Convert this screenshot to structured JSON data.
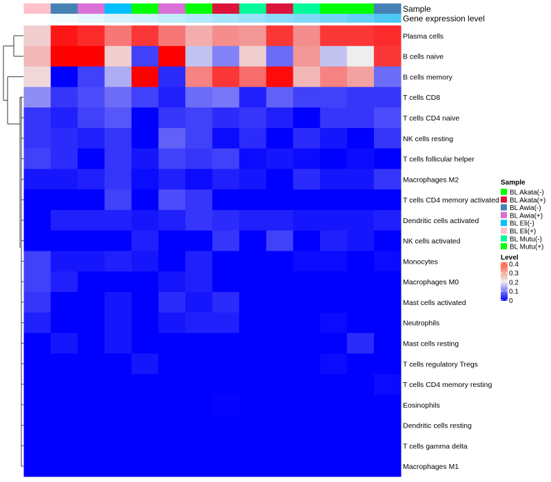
{
  "chart_data": {
    "type": "heatmap",
    "title": "",
    "annotation_rows": [
      "Sample",
      "Gene expression level"
    ],
    "rows": [
      "Plasma cells",
      "B cells naive",
      "B cells memory",
      "T cells CD8",
      "T cells CD4 naive",
      "NK cells resting",
      "T cells follicular helper",
      "Macrophages M2",
      "T cells CD4 memory activated",
      "Dendritic cells activated",
      "NK cells activated",
      "Monocytes",
      "Macrophages M0",
      "Mast cells activated",
      "Neutrophils",
      "Mast cells resting",
      "T cells regulatory  Tregs",
      "T cells CD4 memory resting",
      "Eosinophils",
      "Dendritic cells resting",
      "T cells gamma delta",
      "Macrophages M1"
    ],
    "column_samples": [
      "BL Eli(+)",
      "BL Awia(-)",
      "BL Awia(+)",
      "BL Eli(-)",
      "BL Akata(-)",
      "BL Awia(+)",
      "BL Mutu(+)",
      "BL Akata(+)",
      "BL Mutu(-)",
      "BL Akata(+)",
      "BL Mutu(-)",
      "BL Akata(-)",
      "BL Mutu(+)",
      "BL Awia(-)"
    ],
    "column_gene_expression_level": [
      0,
      0.07,
      0.14,
      0.21,
      0.28,
      0.35,
      0.42,
      0.5,
      0.57,
      0.64,
      0.71,
      0.78,
      0.86,
      1
    ],
    "values": [
      [
        0.25,
        0.42,
        0.4,
        0.33,
        0.39,
        0.33,
        0.28,
        0.31,
        0.3,
        0.39,
        0.31,
        0.39,
        0.39,
        0.4
      ],
      [
        0.27,
        0.44,
        0.44,
        0.25,
        0.06,
        0.44,
        0.18,
        0.12,
        0.25,
        0.1,
        0.3,
        0.18,
        0.22,
        0.39
      ],
      [
        0.24,
        0.0,
        0.06,
        0.16,
        0.44,
        0.04,
        0.32,
        0.39,
        0.34,
        0.43,
        0.27,
        0.32,
        0.29,
        0.1
      ],
      [
        0.13,
        0.05,
        0.07,
        0.1,
        0.06,
        0.03,
        0.1,
        0.11,
        0.03,
        0.09,
        0.06,
        0.06,
        0.05,
        0.05
      ],
      [
        0.05,
        0.03,
        0.06,
        0.08,
        0.0,
        0.05,
        0.06,
        0.04,
        0.05,
        0.03,
        0.0,
        0.05,
        0.05,
        0.07
      ],
      [
        0.05,
        0.04,
        0.03,
        0.05,
        0.0,
        0.09,
        0.06,
        0.01,
        0.04,
        0.0,
        0.04,
        0.02,
        0.0,
        0.05
      ],
      [
        0.06,
        0.04,
        0.0,
        0.05,
        0.02,
        0.06,
        0.05,
        0.06,
        0.01,
        0.02,
        0.01,
        0.0,
        0.01,
        0.0
      ],
      [
        0.02,
        0.02,
        0.03,
        0.05,
        0.01,
        0.03,
        0.01,
        0.03,
        0.02,
        0.0,
        0.04,
        0.02,
        0.02,
        0.05
      ],
      [
        0.0,
        0.0,
        0.0,
        0.06,
        0.0,
        0.07,
        0.05,
        0.0,
        0.0,
        0.0,
        0.0,
        0.0,
        0.0,
        0.0
      ],
      [
        0.0,
        0.03,
        0.03,
        0.03,
        0.02,
        0.03,
        0.05,
        0.04,
        0.03,
        0.03,
        0.02,
        0.02,
        0.02,
        0.03
      ],
      [
        0.0,
        0.0,
        0.0,
        0.0,
        0.03,
        0.0,
        0.0,
        0.05,
        0.0,
        0.06,
        0.0,
        0.03,
        0.02,
        0.0
      ],
      [
        0.06,
        0.02,
        0.02,
        0.03,
        0.02,
        0.0,
        0.03,
        0.0,
        0.0,
        0.0,
        0.01,
        0.01,
        0.0,
        0.01
      ],
      [
        0.06,
        0.03,
        0.0,
        0.0,
        0.0,
        0.02,
        0.03,
        0.0,
        0.0,
        0.0,
        0.0,
        0.0,
        0.0,
        0.0
      ],
      [
        0.05,
        0.0,
        0.0,
        0.02,
        0.0,
        0.04,
        0.02,
        0.04,
        0.0,
        0.0,
        0.0,
        0.0,
        0.0,
        0.0
      ],
      [
        0.03,
        0.0,
        0.0,
        0.02,
        0.0,
        0.02,
        0.03,
        0.03,
        0.0,
        0.0,
        0.0,
        0.01,
        0.0,
        0.0
      ],
      [
        0.0,
        0.02,
        0.0,
        0.02,
        0.0,
        0.0,
        0.0,
        0.0,
        0.0,
        0.0,
        0.0,
        0.0,
        0.04,
        0.0
      ],
      [
        0.0,
        0.0,
        0.0,
        0.0,
        0.02,
        0.0,
        0.0,
        0.0,
        0.0,
        0.0,
        0.0,
        0.01,
        0.0,
        0.0
      ],
      [
        0.0,
        0.0,
        0.0,
        0.0,
        0.0,
        0.0,
        0.0,
        0.0,
        0.0,
        0.0,
        0.0,
        0.0,
        0.0,
        0.01
      ],
      [
        0,
        0,
        0,
        0,
        0,
        0,
        0,
        0.005,
        0,
        0,
        0,
        0,
        0,
        0
      ],
      [
        0,
        0,
        0,
        0,
        0,
        0,
        0,
        0,
        0,
        0,
        0,
        0,
        0,
        0
      ],
      [
        0,
        0,
        0,
        0,
        0,
        0,
        0,
        0,
        0,
        0,
        0,
        0,
        0,
        0
      ],
      [
        0,
        0,
        0,
        0,
        0,
        0,
        0,
        0,
        0,
        0,
        0,
        0,
        0,
        0
      ]
    ],
    "color_scale": {
      "low": "#0000ff",
      "mid": "#eeeeee",
      "high": "#ff0000",
      "range": [
        0,
        0.44
      ]
    },
    "gene_level_colors": {
      "low": "#ffffff",
      "high": "#4cc8f5"
    },
    "legend": {
      "sample_title": "Sample",
      "samples": [
        {
          "label": "BL Akata(-)",
          "color": "#00ff00"
        },
        {
          "label": "BL Akata(+)",
          "color": "#dc143c"
        },
        {
          "label": "BL Awia(-)",
          "color": "#4682b4"
        },
        {
          "label": "BL Awia(+)",
          "color": "#da70d6"
        },
        {
          "label": "BL Eli(-)",
          "color": "#00bfff"
        },
        {
          "label": "BL Eli(+)",
          "color": "#ffc0cb"
        },
        {
          "label": "BL Mutu(-)",
          "color": "#00fa9a"
        },
        {
          "label": "BL Mutu(+)",
          "color": "#00ff00"
        }
      ],
      "level_title": "Level",
      "level_ticks": [
        "0.4",
        "0.3",
        "0.2",
        "0.1",
        "0"
      ],
      "placement": "right"
    }
  }
}
